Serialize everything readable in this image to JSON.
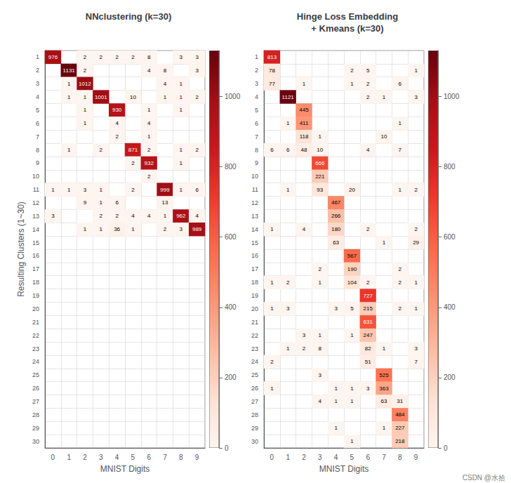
{
  "chart_data": [
    {
      "type": "heatmap",
      "title": "NNclustering (k=30)",
      "x_label": "MNIST Digits",
      "y_label": "Resulting Clusters (1~30)",
      "x_categories": [
        "0",
        "1",
        "2",
        "3",
        "4",
        "5",
        "6",
        "7",
        "8",
        "9"
      ],
      "y_categories": [
        "1",
        "2",
        "3",
        "4",
        "5",
        "6",
        "7",
        "8",
        "9",
        "10",
        "11",
        "12",
        "13",
        "14",
        "15",
        "16",
        "17",
        "18",
        "19",
        "20",
        "21",
        "22",
        "23",
        "24",
        "25",
        "26",
        "27",
        "28",
        "29",
        "30"
      ],
      "cells": [
        [
          976,
          0,
          2,
          2,
          2,
          2,
          8,
          0,
          3,
          3
        ],
        [
          0,
          1131,
          2,
          0,
          0,
          0,
          4,
          8,
          0,
          3
        ],
        [
          0,
          1,
          1012,
          0,
          0,
          0,
          0,
          4,
          1,
          0
        ],
        [
          0,
          1,
          1,
          1001,
          0,
          10,
          0,
          1,
          1,
          2
        ],
        [
          0,
          0,
          1,
          0,
          930,
          0,
          1,
          0,
          1,
          0
        ],
        [
          0,
          0,
          1,
          0,
          4,
          0,
          4,
          0,
          0,
          0
        ],
        [
          0,
          0,
          0,
          0,
          2,
          0,
          1,
          0,
          0,
          0
        ],
        [
          0,
          1,
          0,
          2,
          0,
          871,
          2,
          0,
          1,
          2
        ],
        [
          0,
          0,
          0,
          0,
          0,
          2,
          932,
          0,
          1,
          0
        ],
        [
          0,
          0,
          0,
          0,
          0,
          0,
          2,
          0,
          0,
          0
        ],
        [
          1,
          1,
          3,
          1,
          0,
          2,
          0,
          999,
          1,
          6
        ],
        [
          0,
          0,
          9,
          1,
          6,
          0,
          0,
          13,
          0,
          0
        ],
        [
          3,
          0,
          0,
          2,
          2,
          4,
          4,
          1,
          962,
          4
        ],
        [
          0,
          0,
          1,
          1,
          36,
          1,
          0,
          2,
          3,
          989
        ],
        [
          0,
          0,
          0,
          0,
          0,
          0,
          0,
          0,
          0,
          0
        ],
        [
          0,
          0,
          0,
          0,
          0,
          0,
          0,
          0,
          0,
          0
        ],
        [
          0,
          0,
          0,
          0,
          0,
          0,
          0,
          0,
          0,
          0
        ],
        [
          0,
          0,
          0,
          0,
          0,
          0,
          0,
          0,
          0,
          0
        ],
        [
          0,
          0,
          0,
          0,
          0,
          0,
          0,
          0,
          0,
          0
        ],
        [
          0,
          0,
          0,
          0,
          0,
          0,
          0,
          0,
          0,
          0
        ],
        [
          0,
          0,
          0,
          0,
          0,
          0,
          0,
          0,
          0,
          0
        ],
        [
          0,
          0,
          0,
          0,
          0,
          0,
          0,
          0,
          0,
          0
        ],
        [
          0,
          0,
          0,
          0,
          0,
          0,
          0,
          0,
          0,
          0
        ],
        [
          0,
          0,
          0,
          0,
          0,
          0,
          0,
          0,
          0,
          0
        ],
        [
          0,
          0,
          0,
          0,
          0,
          0,
          0,
          0,
          0,
          0
        ],
        [
          0,
          0,
          0,
          0,
          0,
          0,
          0,
          0,
          0,
          0
        ],
        [
          0,
          0,
          0,
          0,
          0,
          0,
          0,
          0,
          0,
          0
        ],
        [
          0,
          0,
          0,
          0,
          0,
          0,
          0,
          0,
          0,
          0
        ],
        [
          0,
          0,
          0,
          0,
          0,
          0,
          0,
          0,
          0,
          0
        ],
        [
          0,
          0,
          0,
          0,
          0,
          0,
          0,
          0,
          0,
          0
        ]
      ],
      "colorbar_range": [
        0,
        1131
      ],
      "colorbar_ticks": [
        0,
        200,
        400,
        600,
        800,
        1000
      ],
      "color": "Reds",
      "data_labels": true,
      "grid": true
    },
    {
      "type": "heatmap",
      "title": "Hinge Loss Embedding\n+ Kmeans (k=30)",
      "x_label": "MNIST Digits",
      "x_categories": [
        "0",
        "1",
        "2",
        "3",
        "4",
        "5",
        "6",
        "7",
        "8",
        "9"
      ],
      "y_categories": [
        "1",
        "2",
        "3",
        "4",
        "5",
        "6",
        "7",
        "8",
        "9",
        "10",
        "11",
        "12",
        "13",
        "14",
        "15",
        "16",
        "17",
        "18",
        "19",
        "20",
        "21",
        "22",
        "23",
        "24",
        "25",
        "26",
        "27",
        "28",
        "29",
        "30"
      ],
      "cells": [
        [
          813,
          0,
          0,
          0,
          0,
          0,
          0,
          0,
          0,
          0
        ],
        [
          78,
          0,
          0,
          0,
          0,
          2,
          5,
          0,
          0,
          1
        ],
        [
          77,
          0,
          1,
          0,
          0,
          1,
          2,
          0,
          6,
          0
        ],
        [
          0,
          1121,
          0,
          0,
          0,
          0,
          2,
          1,
          0,
          3
        ],
        [
          0,
          0,
          445,
          0,
          0,
          0,
          0,
          0,
          0,
          0
        ],
        [
          0,
          1,
          411,
          0,
          0,
          0,
          0,
          0,
          1,
          0
        ],
        [
          0,
          0,
          118,
          1,
          0,
          0,
          0,
          10,
          0,
          0
        ],
        [
          6,
          6,
          48,
          10,
          0,
          0,
          4,
          0,
          7,
          0
        ],
        [
          0,
          0,
          0,
          666,
          0,
          0,
          0,
          0,
          0,
          0
        ],
        [
          0,
          0,
          0,
          221,
          0,
          0,
          0,
          0,
          0,
          0
        ],
        [
          0,
          1,
          0,
          93,
          0,
          20,
          0,
          0,
          1,
          2
        ],
        [
          0,
          0,
          0,
          0,
          467,
          0,
          0,
          0,
          0,
          0
        ],
        [
          0,
          0,
          0,
          0,
          266,
          0,
          0,
          0,
          0,
          0
        ],
        [
          1,
          0,
          4,
          0,
          180,
          0,
          2,
          0,
          0,
          2
        ],
        [
          0,
          0,
          0,
          0,
          63,
          0,
          0,
          1,
          0,
          29
        ],
        [
          0,
          0,
          0,
          0,
          0,
          567,
          0,
          0,
          0,
          0
        ],
        [
          0,
          0,
          0,
          2,
          0,
          190,
          0,
          0,
          2,
          0
        ],
        [
          1,
          2,
          0,
          1,
          0,
          104,
          2,
          0,
          2,
          1
        ],
        [
          0,
          0,
          0,
          0,
          0,
          0,
          727,
          0,
          0,
          0
        ],
        [
          1,
          3,
          0,
          0,
          3,
          5,
          215,
          0,
          2,
          1
        ],
        [
          0,
          0,
          0,
          0,
          0,
          0,
          631,
          0,
          0,
          0
        ],
        [
          0,
          0,
          3,
          1,
          0,
          1,
          247,
          0,
          0,
          0
        ],
        [
          0,
          1,
          2,
          8,
          0,
          0,
          82,
          1,
          0,
          3
        ],
        [
          2,
          0,
          0,
          0,
          0,
          0,
          51,
          0,
          0,
          7
        ],
        [
          0,
          0,
          0,
          3,
          0,
          0,
          0,
          525,
          0,
          0
        ],
        [
          1,
          0,
          0,
          0,
          1,
          1,
          3,
          363,
          0,
          0
        ],
        [
          0,
          0,
          0,
          4,
          1,
          1,
          0,
          63,
          31,
          0
        ],
        [
          0,
          0,
          0,
          0,
          0,
          0,
          0,
          0,
          484,
          0
        ],
        [
          0,
          0,
          0,
          0,
          1,
          0,
          0,
          1,
          227,
          0
        ],
        [
          0,
          0,
          0,
          0,
          0,
          1,
          0,
          0,
          218,
          0
        ]
      ],
      "colorbar_range": [
        0,
        1131
      ],
      "colorbar_ticks": [
        0,
        200,
        400,
        600,
        800,
        1000
      ],
      "color": "Reds",
      "data_labels": true,
      "grid": true,
      "annotations": [
        "CSDN @水拾"
      ]
    }
  ]
}
